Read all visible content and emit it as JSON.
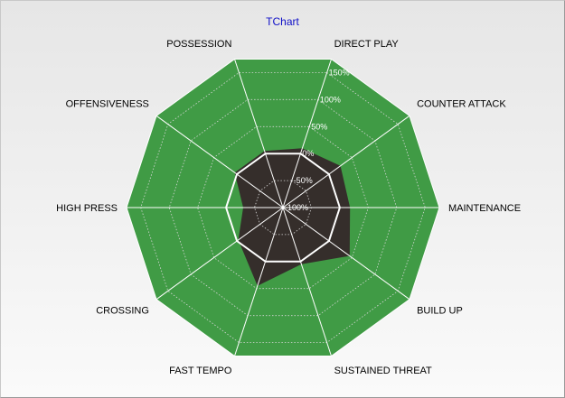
{
  "chart_data": {
    "type": "radar",
    "title": "TChart",
    "categories": [
      "DIRECT PLAY",
      "COUNTER ATTACK",
      "MAINTENANCE",
      "BUILD UP",
      "SUSTAINED THREAT",
      "FAST TEMPO",
      "CROSSING",
      "HIGH PRESS",
      "OFFENSIVENESS",
      "POSSESSION"
    ],
    "rlim": [
      -100,
      175
    ],
    "ticks": [
      -100,
      -50,
      0,
      50,
      100,
      150
    ],
    "tick_labels": [
      "-100%",
      "-50%",
      "0%",
      "50%",
      "100%",
      "150%"
    ],
    "grid": true,
    "series": [
      {
        "values": [
          175,
          175,
          175,
          175,
          175,
          175,
          175,
          175,
          175,
          175
        ],
        "color": "#409b45"
      },
      {
        "values": [
          10,
          25,
          18,
          45,
          5,
          45,
          -3,
          -30,
          5,
          5
        ],
        "color": "#352e2b"
      }
    ],
    "reference": {
      "value": 0,
      "color": "#ffffff"
    }
  }
}
